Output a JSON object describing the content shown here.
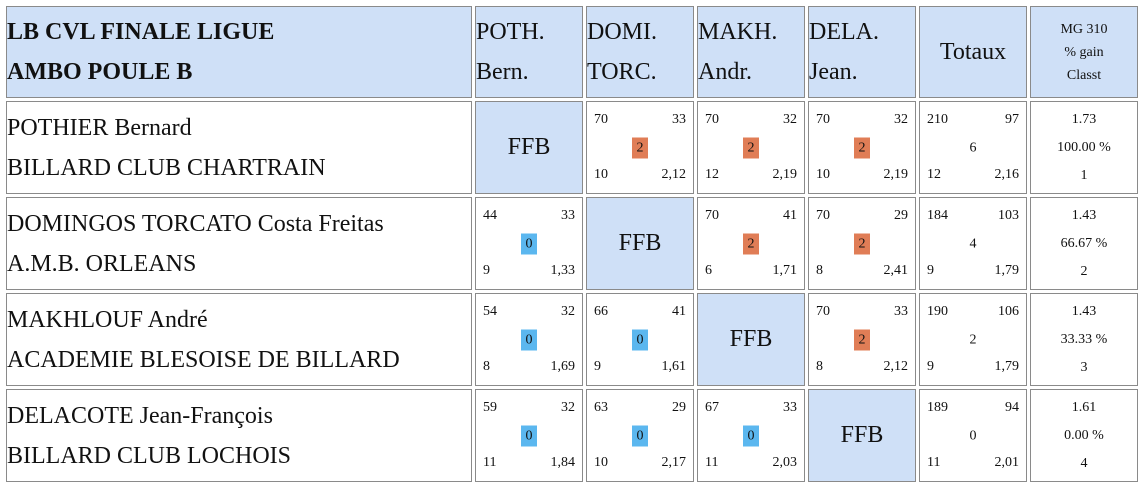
{
  "title_lines": [
    "LB CVL FINALE LIGUE",
    "AMBO POULE B"
  ],
  "columns": [
    {
      "l1": "POTH.",
      "l2": "Bern."
    },
    {
      "l1": "DOMI.",
      "l2": "TORC."
    },
    {
      "l1": "MAKH.",
      "l2": "Andr."
    },
    {
      "l1": "DELA.",
      "l2": "Jean."
    }
  ],
  "totals_header": "Totaux",
  "mg_header": [
    "MG 310",
    "% gain",
    "Classt"
  ],
  "ffb": "FFB",
  "colors": {
    "header_bg": "#cfe0f7",
    "win": "#e07d56",
    "loss": "#5bb7ef"
  },
  "rows": [
    {
      "name": "POTHIER Bernard",
      "club": "BILLARD CLUB CHARTRAIN",
      "m": [
        null,
        {
          "tl": "70",
          "tr": "33",
          "p": "2",
          "bl": "10",
          "br": "2,12"
        },
        {
          "tl": "70",
          "tr": "32",
          "p": "2",
          "bl": "12",
          "br": "2,19"
        },
        {
          "tl": "70",
          "tr": "32",
          "p": "2",
          "bl": "10",
          "br": "2,19"
        }
      ],
      "tot": {
        "tl": "210",
        "tr": "97",
        "p": "6",
        "bl": "12",
        "br": "2,16"
      },
      "stats": [
        "1.73",
        "100.00 %",
        "1"
      ]
    },
    {
      "name": "DOMINGOS TORCATO Costa Freitas",
      "club": "A.M.B. ORLEANS",
      "m": [
        {
          "tl": "44",
          "tr": "33",
          "p": "0",
          "bl": "9",
          "br": "1,33"
        },
        null,
        {
          "tl": "70",
          "tr": "41",
          "p": "2",
          "bl": "6",
          "br": "1,71"
        },
        {
          "tl": "70",
          "tr": "29",
          "p": "2",
          "bl": "8",
          "br": "2,41"
        }
      ],
      "tot": {
        "tl": "184",
        "tr": "103",
        "p": "4",
        "bl": "9",
        "br": "1,79"
      },
      "stats": [
        "1.43",
        "66.67 %",
        "2"
      ]
    },
    {
      "name": "MAKHLOUF André",
      "club": "ACADEMIE BLESOISE DE BILLARD",
      "m": [
        {
          "tl": "54",
          "tr": "32",
          "p": "0",
          "bl": "8",
          "br": "1,69"
        },
        {
          "tl": "66",
          "tr": "41",
          "p": "0",
          "bl": "9",
          "br": "1,61"
        },
        null,
        {
          "tl": "70",
          "tr": "33",
          "p": "2",
          "bl": "8",
          "br": "2,12"
        }
      ],
      "tot": {
        "tl": "190",
        "tr": "106",
        "p": "2",
        "bl": "9",
        "br": "1,79"
      },
      "stats": [
        "1.43",
        "33.33 %",
        "3"
      ]
    },
    {
      "name": "DELACOTE Jean-François",
      "club": "BILLARD CLUB LOCHOIS",
      "m": [
        {
          "tl": "59",
          "tr": "32",
          "p": "0",
          "bl": "11",
          "br": "1,84"
        },
        {
          "tl": "63",
          "tr": "29",
          "p": "0",
          "bl": "10",
          "br": "2,17"
        },
        {
          "tl": "67",
          "tr": "33",
          "p": "0",
          "bl": "11",
          "br": "2,03"
        },
        null
      ],
      "tot": {
        "tl": "189",
        "tr": "94",
        "p": "0",
        "bl": "11",
        "br": "2,01"
      },
      "stats": [
        "1.61",
        "0.00 %",
        "4"
      ]
    }
  ]
}
